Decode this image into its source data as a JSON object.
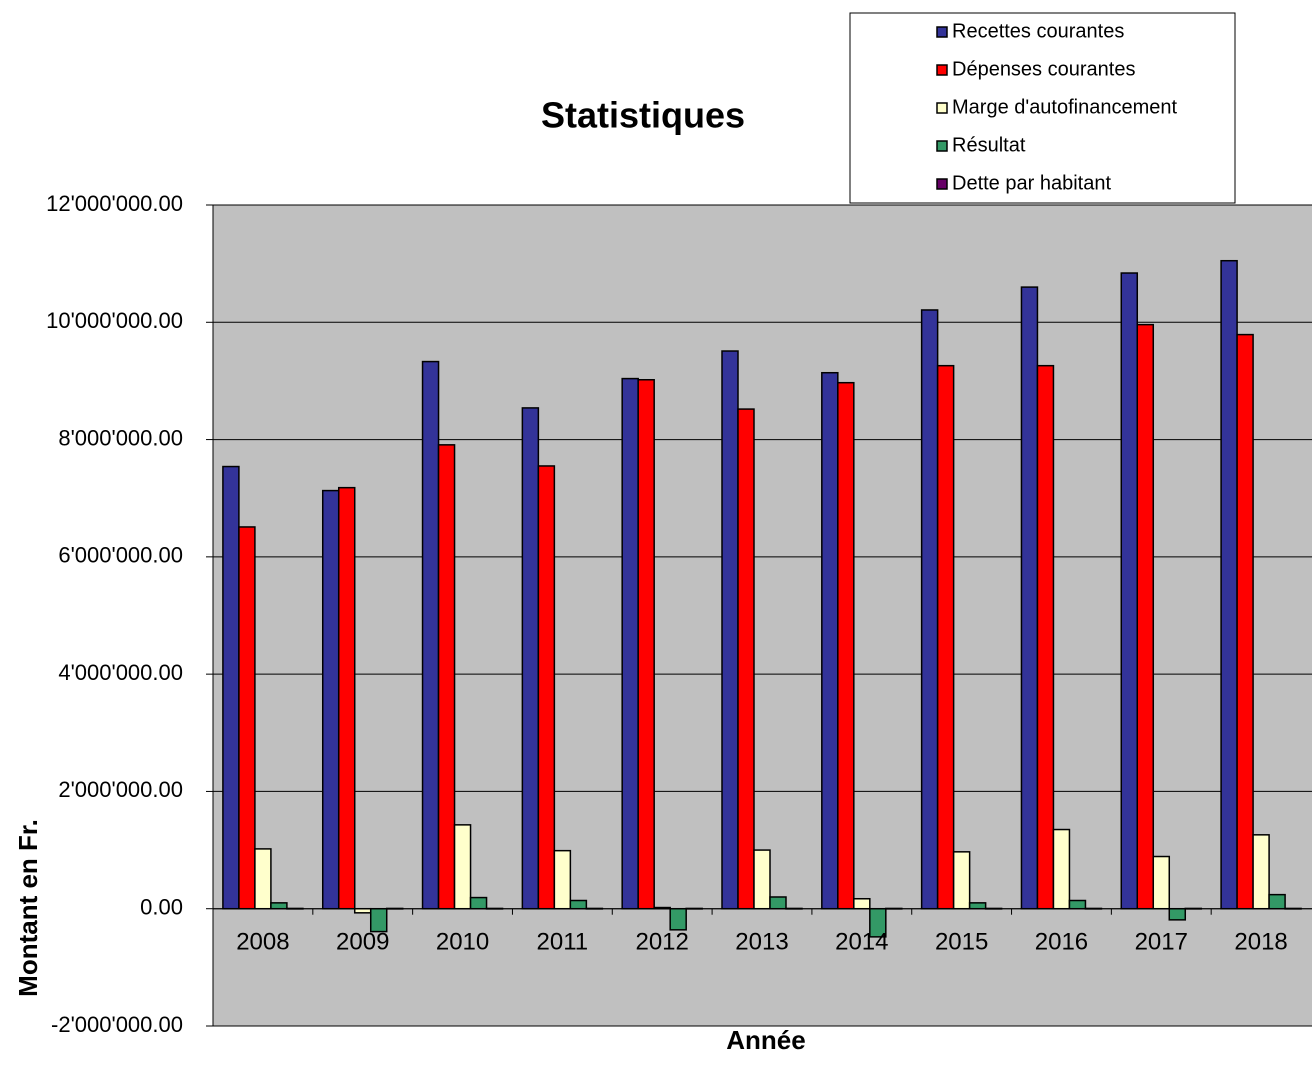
{
  "chart_data": {
    "type": "bar",
    "title": "Statistiques",
    "x_label": "Année",
    "y_label": "Montant en Fr.",
    "categories": [
      "2008",
      "2009",
      "2010",
      "2011",
      "2012",
      "2013",
      "2014",
      "2015",
      "2016",
      "2017",
      "2018"
    ],
    "series": [
      {
        "name": "Recettes courantes",
        "color": "#333399",
        "values": [
          7540000,
          7130000,
          9330000,
          8540000,
          9040000,
          9510000,
          9140000,
          10210000,
          10600000,
          10840000,
          11050000
        ]
      },
      {
        "name": "Dépenses courantes",
        "color": "#ff0000",
        "values": [
          6510000,
          7180000,
          7910000,
          7550000,
          9020000,
          8520000,
          8970000,
          9260000,
          9260000,
          9960000,
          9790000
        ]
      },
      {
        "name": "Marge d'autofinancement",
        "color": "#ffffcc",
        "values": [
          1020000,
          -70000,
          1430000,
          990000,
          20000,
          1000000,
          170000,
          970000,
          1350000,
          890000,
          1260000
        ]
      },
      {
        "name": "Résultat",
        "color": "#339966",
        "values": [
          100000,
          -390000,
          190000,
          140000,
          -360000,
          200000,
          -480000,
          100000,
          140000,
          -190000,
          240000
        ]
      },
      {
        "name": "Dette par habitant",
        "color": "#660066",
        "values": [
          5000,
          5000,
          5000,
          5000,
          5000,
          5000,
          5000,
          5000,
          5000,
          5000,
          5000
        ]
      }
    ],
    "ylim": [
      -2000000,
      12000000
    ],
    "yticks": [
      {
        "value": -2000000,
        "label": "-2'000'000.00"
      },
      {
        "value": 0,
        "label": "0.00"
      },
      {
        "value": 2000000,
        "label": "2'000'000.00"
      },
      {
        "value": 4000000,
        "label": "4'000'000.00"
      },
      {
        "value": 6000000,
        "label": "6'000'000.00"
      },
      {
        "value": 8000000,
        "label": "8'000'000.00"
      },
      {
        "value": 10000000,
        "label": "10'000'000.00"
      },
      {
        "value": 12000000,
        "label": "12'000'000.00"
      }
    ],
    "negative_tick_color": "#ff0000",
    "grid": true,
    "plot_background": "#c0c0c0",
    "legend": "top right"
  }
}
